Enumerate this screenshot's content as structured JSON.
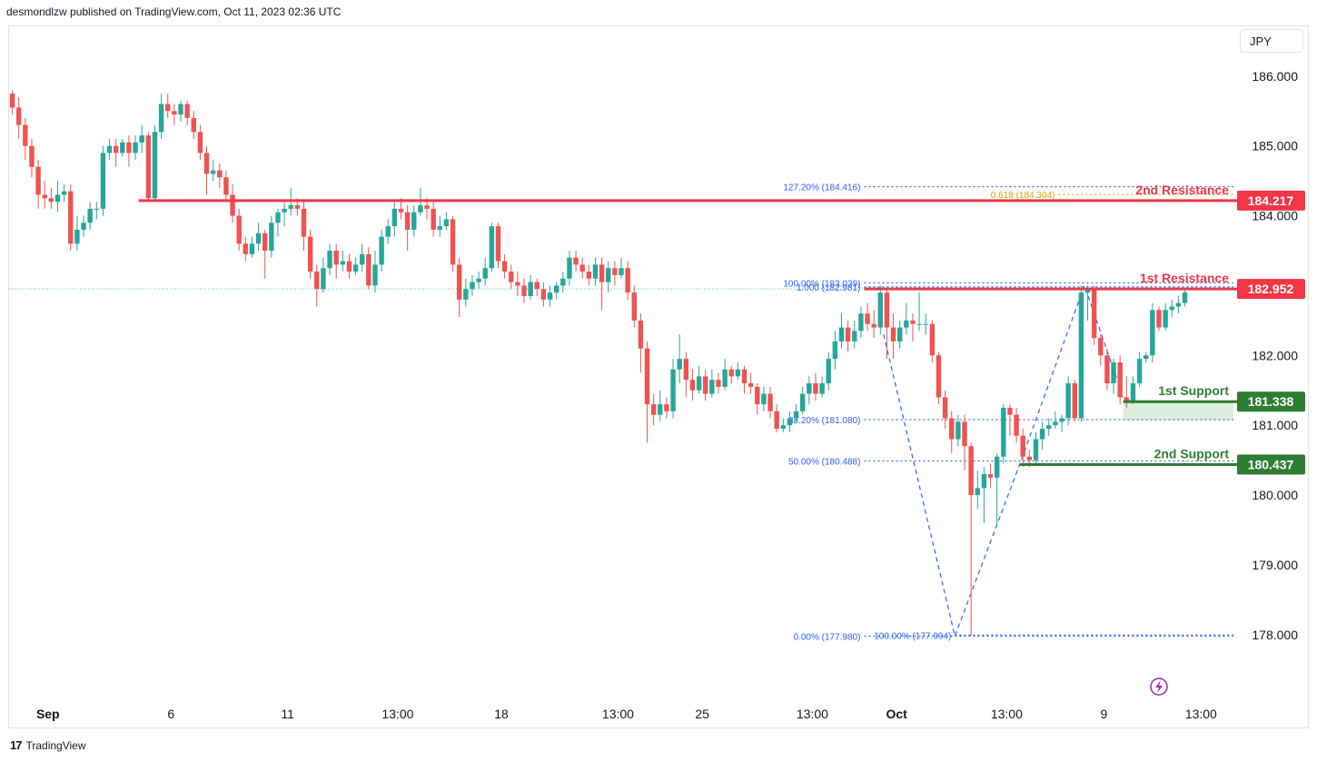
{
  "header": {
    "publisher_line": "desmondlzw published on TradingView.com, Oct 11, 2023 02:36 UTC"
  },
  "currency_button": "JPY",
  "footer": {
    "brand": "TradingView"
  },
  "colors": {
    "bull": "#26a69a",
    "bear": "#ef5350",
    "resistance": "#f23645",
    "support": "#2e7d32",
    "fib": "#2962ff",
    "fib_gold": "#e0a100",
    "support_zone": "#dcefdc"
  },
  "chart_data": {
    "type": "candlestick",
    "symbol_currency": "JPY",
    "y_axis": {
      "range": [
        177.1,
        186.7
      ],
      "ticks": [
        "186.000",
        "185.000",
        "184.000",
        "182.000",
        "181.000",
        "180.000",
        "179.000",
        "178.000"
      ],
      "tick_values": [
        186,
        185,
        184,
        182,
        181,
        180,
        179,
        178
      ]
    },
    "x_axis": {
      "range": [
        0,
        189
      ],
      "ticks": [
        {
          "label": "Sep",
          "index": 6
        },
        {
          "label": "6",
          "index": 25
        },
        {
          "label": "11",
          "index": 43
        },
        {
          "label": "13:00",
          "index": 60
        },
        {
          "label": "18",
          "index": 76
        },
        {
          "label": "13:00",
          "index": 94
        },
        {
          "label": "25",
          "index": 107
        },
        {
          "label": "13:00",
          "index": 124
        },
        {
          "label": "Oct",
          "index": 137
        },
        {
          "label": "13:00",
          "index": 154
        },
        {
          "label": "9",
          "index": 169
        },
        {
          "label": "13:00",
          "index": 184
        }
      ]
    },
    "current_price": 182.952,
    "levels": [
      {
        "name": "2nd Resistance",
        "price": 184.217,
        "label": "184.217",
        "kind": "resistance",
        "from_index": 20
      },
      {
        "name": "1st Resistance",
        "price": 182.952,
        "label": "182.952",
        "kind": "resistance",
        "from_index": 132
      },
      {
        "name": "1st Support",
        "price": 181.338,
        "label": "181.338",
        "kind": "support",
        "from_index": 172
      },
      {
        "name": "2nd Support",
        "price": 180.437,
        "label": "180.437",
        "kind": "support",
        "from_index": 156
      }
    ],
    "support_zone": {
      "top": 181.338,
      "bottom": 181.07,
      "from_index": 172
    },
    "fib_labels": [
      {
        "text": "127.20% (184.416)",
        "price": 184.416,
        "color": "fib",
        "from_index": 132
      },
      {
        "text": "0.618 (184.304)",
        "price": 184.304,
        "color": "fib_gold",
        "from_index": 162
      },
      {
        "text": "100.00% (183.039)",
        "price": 183.039,
        "color": "fib",
        "from_index": 132
      },
      {
        "text": "1.000 (182.981)",
        "price": 182.981,
        "color": "fib",
        "from_index": 132
      },
      {
        "text": "38.20% (181.080)",
        "price": 181.08,
        "color": "fib",
        "from_index": 132
      },
      {
        "text": "50.00% (180.488)",
        "price": 180.488,
        "color": "fib",
        "from_index": 132
      },
      {
        "text": "0.00% (177.980)",
        "price": 177.98,
        "color": "fib",
        "from_index": 132
      },
      {
        "text": "100.00% (177.994)",
        "price": 177.994,
        "color": "fib",
        "from_index": 146
      }
    ],
    "pattern_points": [
      {
        "index": 135,
        "price": 182.3
      },
      {
        "index": 146,
        "price": 177.98
      },
      {
        "index": 156,
        "price": 180.437
      },
      {
        "index": 166,
        "price": 183.0
      },
      {
        "index": 172,
        "price": 181.4
      }
    ],
    "candles": [
      [
        185.75,
        185.55,
        185.8,
        185.45
      ],
      [
        185.55,
        185.3,
        185.7,
        185.1
      ],
      [
        185.3,
        185.0,
        185.4,
        184.8
      ],
      [
        185.0,
        184.7,
        185.1,
        184.55
      ],
      [
        184.7,
        184.3,
        184.8,
        184.1
      ],
      [
        184.3,
        184.25,
        184.5,
        184.1
      ],
      [
        184.25,
        184.2,
        184.4,
        184.1
      ],
      [
        184.2,
        184.3,
        184.5,
        184.05
      ],
      [
        184.3,
        184.35,
        184.45,
        184.2
      ],
      [
        184.35,
        183.6,
        184.45,
        183.5
      ],
      [
        183.6,
        183.8,
        184.0,
        183.5
      ],
      [
        183.8,
        183.9,
        184.0,
        183.7
      ],
      [
        183.9,
        184.1,
        184.2,
        183.8
      ],
      [
        184.1,
        184.1,
        184.2,
        183.95
      ],
      [
        184.1,
        184.9,
        185.0,
        184.0
      ],
      [
        184.9,
        185.0,
        185.1,
        184.8
      ],
      [
        185.0,
        184.9,
        185.1,
        184.7
      ],
      [
        184.9,
        185.05,
        185.1,
        184.85
      ],
      [
        185.05,
        184.9,
        185.15,
        184.7
      ],
      [
        184.9,
        185.05,
        185.15,
        184.8
      ],
      [
        185.05,
        185.15,
        185.3,
        184.9
      ],
      [
        185.15,
        184.25,
        185.2,
        184.2
      ],
      [
        184.25,
        185.2,
        185.3,
        184.2
      ],
      [
        185.2,
        185.6,
        185.75,
        185.1
      ],
      [
        185.6,
        185.5,
        185.75,
        185.4
      ],
      [
        185.5,
        185.45,
        185.6,
        185.3
      ],
      [
        185.45,
        185.6,
        185.65,
        185.35
      ],
      [
        185.6,
        185.4,
        185.65,
        185.3
      ],
      [
        185.4,
        185.2,
        185.5,
        185.1
      ],
      [
        185.2,
        184.9,
        185.3,
        184.8
      ],
      [
        184.9,
        184.6,
        185.0,
        184.3
      ],
      [
        184.6,
        184.65,
        184.8,
        184.5
      ],
      [
        184.65,
        184.55,
        184.75,
        184.4
      ],
      [
        184.55,
        184.3,
        184.65,
        184.2
      ],
      [
        184.3,
        184.0,
        184.45,
        183.9
      ],
      [
        184.0,
        183.6,
        184.1,
        183.5
      ],
      [
        183.6,
        183.45,
        183.7,
        183.35
      ],
      [
        183.45,
        183.6,
        183.7,
        183.4
      ],
      [
        183.6,
        183.75,
        183.9,
        183.5
      ],
      [
        183.75,
        183.5,
        183.8,
        183.1
      ],
      [
        183.5,
        183.9,
        184.0,
        183.4
      ],
      [
        183.9,
        184.05,
        184.1,
        183.7
      ],
      [
        184.05,
        184.1,
        184.2,
        183.85
      ],
      [
        184.1,
        184.15,
        184.4,
        184.0
      ],
      [
        184.15,
        184.1,
        184.25,
        184.0
      ],
      [
        184.1,
        183.7,
        184.2,
        183.5
      ],
      [
        183.7,
        183.2,
        183.8,
        183.1
      ],
      [
        183.2,
        182.95,
        183.3,
        182.7
      ],
      [
        182.95,
        183.25,
        183.4,
        182.9
      ],
      [
        183.25,
        183.5,
        183.6,
        183.15
      ],
      [
        183.5,
        183.3,
        183.6,
        183.1
      ],
      [
        183.3,
        183.35,
        183.5,
        183.2
      ],
      [
        183.35,
        183.2,
        183.45,
        183.1
      ],
      [
        183.2,
        183.3,
        183.4,
        183.15
      ],
      [
        183.3,
        183.45,
        183.6,
        183.2
      ],
      [
        183.45,
        183.0,
        183.55,
        182.95
      ],
      [
        183.0,
        183.3,
        183.5,
        182.9
      ],
      [
        183.3,
        183.7,
        183.8,
        183.2
      ],
      [
        183.7,
        183.85,
        183.95,
        183.6
      ],
      [
        183.85,
        184.1,
        184.2,
        183.7
      ],
      [
        184.1,
        184.05,
        184.25,
        183.95
      ],
      [
        184.05,
        183.8,
        184.15,
        183.5
      ],
      [
        183.8,
        184.05,
        184.15,
        183.7
      ],
      [
        184.05,
        184.15,
        184.4,
        184.0
      ],
      [
        184.15,
        184.1,
        184.25,
        183.95
      ],
      [
        184.1,
        183.8,
        184.2,
        183.7
      ],
      [
        183.8,
        183.85,
        184.0,
        183.7
      ],
      [
        183.85,
        183.95,
        184.05,
        183.8
      ],
      [
        183.95,
        183.3,
        184.0,
        183.2
      ],
      [
        183.3,
        182.8,
        183.4,
        182.55
      ],
      [
        182.8,
        182.95,
        183.1,
        182.7
      ],
      [
        182.95,
        183.05,
        183.15,
        182.85
      ],
      [
        183.05,
        183.1,
        183.2,
        182.95
      ],
      [
        183.1,
        183.25,
        183.4,
        183.0
      ],
      [
        183.25,
        183.85,
        183.9,
        183.2
      ],
      [
        183.85,
        183.35,
        183.9,
        183.25
      ],
      [
        183.35,
        183.2,
        183.45,
        183.1
      ],
      [
        183.2,
        183.05,
        183.3,
        182.95
      ],
      [
        183.05,
        183.0,
        183.2,
        182.85
      ],
      [
        183.0,
        182.85,
        183.1,
        182.75
      ],
      [
        182.85,
        183.05,
        183.15,
        182.8
      ],
      [
        183.05,
        182.95,
        183.1,
        182.85
      ],
      [
        182.95,
        182.8,
        183.05,
        182.7
      ],
      [
        182.8,
        182.9,
        183.0,
        182.7
      ],
      [
        182.9,
        183.0,
        183.05,
        182.8
      ],
      [
        183.0,
        183.1,
        183.2,
        182.9
      ],
      [
        183.1,
        183.4,
        183.5,
        183.0
      ],
      [
        183.4,
        183.3,
        183.5,
        183.2
      ],
      [
        183.3,
        183.2,
        183.4,
        183.1
      ],
      [
        183.2,
        183.1,
        183.3,
        183.0
      ],
      [
        183.1,
        183.3,
        183.4,
        183.0
      ],
      [
        183.3,
        183.05,
        183.4,
        182.65
      ],
      [
        183.05,
        183.25,
        183.35,
        182.9
      ],
      [
        183.25,
        183.15,
        183.35,
        183.0
      ],
      [
        183.15,
        183.25,
        183.4,
        183.1
      ],
      [
        183.25,
        182.9,
        183.35,
        182.8
      ],
      [
        182.9,
        182.5,
        183.0,
        182.4
      ],
      [
        182.5,
        182.1,
        182.6,
        181.75
      ],
      [
        182.1,
        181.3,
        182.2,
        180.75
      ],
      [
        181.3,
        181.15,
        181.45,
        181.0
      ],
      [
        181.15,
        181.3,
        181.5,
        181.05
      ],
      [
        181.3,
        181.2,
        181.4,
        181.1
      ],
      [
        181.2,
        181.8,
        181.95,
        181.1
      ],
      [
        181.8,
        181.95,
        182.3,
        181.6
      ],
      [
        181.95,
        181.65,
        182.05,
        181.4
      ],
      [
        181.65,
        181.5,
        181.8,
        181.35
      ],
      [
        181.5,
        181.7,
        181.85,
        181.45
      ],
      [
        181.7,
        181.45,
        181.8,
        181.35
      ],
      [
        181.45,
        181.65,
        181.8,
        181.4
      ],
      [
        181.65,
        181.55,
        181.75,
        181.45
      ],
      [
        181.55,
        181.8,
        181.95,
        181.5
      ],
      [
        181.8,
        181.7,
        181.85,
        181.6
      ],
      [
        181.7,
        181.8,
        181.9,
        181.65
      ],
      [
        181.8,
        181.6,
        181.85,
        181.45
      ],
      [
        181.6,
        181.55,
        181.75,
        181.45
      ],
      [
        181.55,
        181.3,
        181.6,
        181.15
      ],
      [
        181.3,
        181.45,
        181.55,
        181.2
      ],
      [
        181.45,
        181.2,
        181.55,
        181.1
      ],
      [
        181.2,
        180.95,
        181.3,
        180.9
      ],
      [
        180.95,
        181.0,
        181.1,
        180.9
      ],
      [
        181.0,
        181.1,
        181.2,
        180.9
      ],
      [
        181.1,
        181.2,
        181.3,
        181.05
      ],
      [
        181.2,
        181.45,
        181.55,
        181.15
      ],
      [
        181.45,
        181.6,
        181.7,
        181.3
      ],
      [
        181.6,
        181.45,
        181.75,
        181.35
      ],
      [
        181.45,
        181.6,
        181.7,
        181.4
      ],
      [
        181.6,
        181.95,
        182.05,
        181.5
      ],
      [
        181.95,
        182.2,
        182.35,
        181.8
      ],
      [
        182.2,
        182.4,
        182.6,
        182.1
      ],
      [
        182.4,
        182.2,
        182.5,
        182.05
      ],
      [
        182.2,
        182.35,
        182.5,
        182.1
      ],
      [
        182.35,
        182.6,
        182.7,
        182.25
      ],
      [
        182.6,
        182.45,
        182.75,
        182.35
      ],
      [
        182.45,
        182.4,
        182.65,
        182.25
      ],
      [
        182.4,
        182.9,
        183.0,
        182.3
      ],
      [
        182.9,
        182.4,
        182.95,
        181.95
      ],
      [
        182.4,
        182.2,
        182.6,
        181.95
      ],
      [
        182.2,
        182.4,
        182.5,
        182.1
      ],
      [
        182.4,
        182.5,
        182.75,
        182.3
      ],
      [
        182.5,
        182.45,
        182.6,
        182.2
      ],
      [
        182.45,
        182.45,
        182.9,
        182.35
      ],
      [
        182.45,
        182.45,
        182.6,
        182.3
      ],
      [
        182.45,
        182.0,
        182.5,
        181.9
      ],
      [
        182.0,
        181.4,
        182.05,
        181.3
      ],
      [
        181.4,
        181.1,
        181.5,
        180.95
      ],
      [
        181.1,
        180.8,
        181.2,
        180.6
      ],
      [
        180.8,
        181.05,
        181.15,
        180.7
      ],
      [
        181.05,
        180.7,
        181.15,
        180.35
      ],
      [
        180.7,
        180.0,
        180.75,
        177.98
      ],
      [
        180.0,
        180.1,
        180.35,
        179.8
      ],
      [
        180.1,
        180.3,
        180.4,
        179.6
      ],
      [
        180.3,
        180.25,
        180.45,
        180.1
      ],
      [
        180.25,
        180.55,
        180.6,
        179.55
      ],
      [
        180.55,
        181.25,
        181.3,
        180.45
      ],
      [
        181.25,
        181.15,
        181.3,
        180.85
      ],
      [
        181.15,
        180.85,
        181.25,
        180.75
      ],
      [
        180.85,
        180.55,
        180.95,
        180.4
      ],
      [
        180.55,
        180.5,
        180.65,
        180.4
      ],
      [
        180.5,
        180.8,
        180.9,
        180.45
      ],
      [
        180.8,
        180.95,
        181.05,
        180.65
      ],
      [
        180.95,
        181.0,
        181.1,
        180.85
      ],
      [
        181.0,
        181.05,
        181.2,
        180.95
      ],
      [
        181.05,
        181.1,
        181.15,
        180.9
      ],
      [
        181.1,
        181.6,
        181.7,
        181.0
      ],
      [
        181.6,
        181.1,
        181.65,
        181.05
      ],
      [
        181.1,
        182.9,
        183.0,
        181.05
      ],
      [
        182.9,
        182.95,
        183.0,
        182.5
      ],
      [
        182.95,
        182.25,
        183.0,
        182.15
      ],
      [
        182.25,
        182.0,
        182.3,
        181.85
      ],
      [
        182.0,
        181.6,
        182.1,
        181.5
      ],
      [
        181.6,
        181.9,
        181.95,
        181.45
      ],
      [
        181.9,
        181.4,
        182.0,
        181.3
      ],
      [
        181.4,
        181.35,
        181.7,
        181.25
      ],
      [
        181.35,
        181.6,
        181.7,
        181.3
      ],
      [
        181.6,
        181.95,
        182.05,
        181.55
      ],
      [
        181.95,
        182.0,
        182.05,
        181.9
      ],
      [
        182.0,
        182.65,
        182.75,
        181.9
      ],
      [
        182.65,
        182.4,
        182.7,
        182.35
      ],
      [
        182.4,
        182.65,
        182.75,
        182.35
      ],
      [
        182.65,
        182.7,
        182.8,
        182.55
      ],
      [
        182.7,
        182.75,
        182.85,
        182.6
      ],
      [
        182.75,
        182.9,
        182.95,
        182.7
      ]
    ]
  }
}
